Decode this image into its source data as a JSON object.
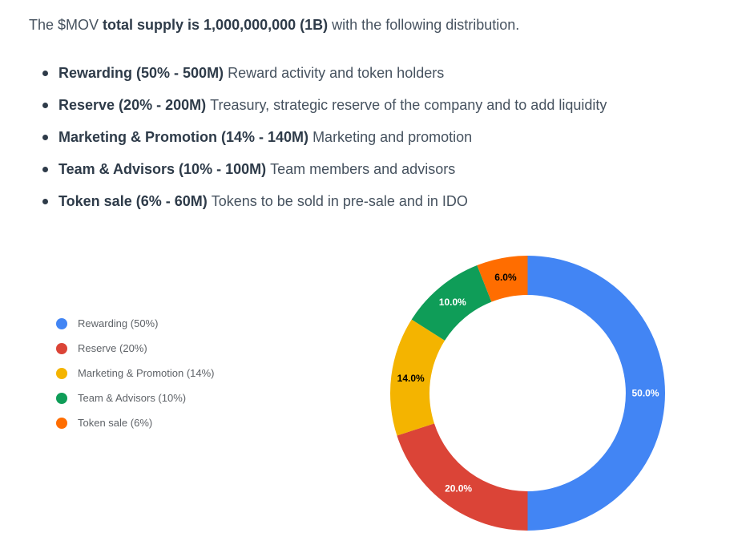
{
  "intro": {
    "prefix": "The $MOV ",
    "bold": "total supply is 1,000,000,000 (1B)",
    "suffix": " with the following distribution."
  },
  "bullets": [
    {
      "bold": "Rewarding (50% - 500M)",
      "desc": "Reward activity and token holders"
    },
    {
      "bold": "Reserve (20% - 200M)",
      "desc": "Treasury, strategic reserve of the company and to add liquidity"
    },
    {
      "bold": "Marketing & Promotion (14% - 140M)",
      "desc": "Marketing and promotion"
    },
    {
      "bold": "Team & Advisors (10% - 100M)",
      "desc": "Team members and advisors"
    },
    {
      "bold": "Token sale (6% - 60M)",
      "desc": "Tokens to be sold in pre-sale and in IDO"
    }
  ],
  "chart_data": {
    "type": "pie",
    "subtype": "donut",
    "title": "",
    "legend_position": "left",
    "background": "#ffffff",
    "start_angle_deg": 0,
    "direction": "clockwise",
    "center": {
      "x": 658.5,
      "y": 490.5
    },
    "outer_radius": 171.5,
    "inner_radius": 122.5,
    "categories": [
      "Rewarding",
      "Reserve",
      "Marketing & Promotion",
      "Team & Advisors",
      "Token sale"
    ],
    "values": [
      50,
      20,
      14,
      10,
      6
    ],
    "slices": [
      {
        "label": "Rewarding",
        "legend_label": "Rewarding (50%)",
        "value_pct": 50,
        "data_label": "50.0%",
        "color": "#4285F4",
        "label_color": "#ffffff"
      },
      {
        "label": "Reserve",
        "legend_label": "Reserve (20%)",
        "value_pct": 20,
        "data_label": "20.0%",
        "color": "#DB4437",
        "label_color": "#ffffff"
      },
      {
        "label": "Marketing & Promotion",
        "legend_label": "Marketing & Promotion (14%)",
        "value_pct": 14,
        "data_label": "14.0%",
        "color": "#F4B400",
        "label_color": "#000000"
      },
      {
        "label": "Team & Advisors",
        "legend_label": "Team & Advisors (10%)",
        "value_pct": 10,
        "data_label": "10.0%",
        "color": "#0F9D58",
        "label_color": "#ffffff"
      },
      {
        "label": "Token sale",
        "legend_label": "Token sale (6%)",
        "value_pct": 6,
        "data_label": "6.0%",
        "color": "#FF6D00",
        "label_color": "#000000"
      }
    ]
  }
}
